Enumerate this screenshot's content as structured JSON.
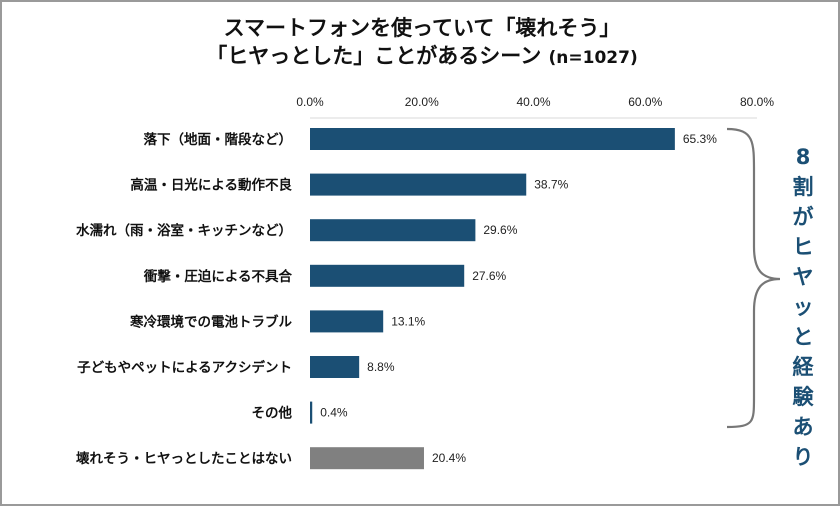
{
  "chart_data": {
    "type": "bar",
    "orientation": "horizontal",
    "title": "スマートフォンを使っていて「壊れそう」",
    "title_line2": "「ヒヤっとした」ことがあるシーン",
    "sample": "(n=1027)",
    "xlim": [
      0,
      80
    ],
    "xticks": [
      "0.0%",
      "20.0%",
      "40.0%",
      "60.0%",
      "80.0%"
    ],
    "xtick_values": [
      0,
      20,
      40,
      60,
      80
    ],
    "axis_position": "top",
    "grid": false,
    "categories": [
      "落下（地面・階段など）",
      "高温・日光による動作不良",
      "水濡れ（雨・浴室・キッチンなど）",
      "衝撃・圧迫による不具合",
      "寒冷環境での電池トラブル",
      "子どもやペットによるアクシデント",
      "その他",
      "壊れそう・ヒヤっとしたことはない"
    ],
    "values": [
      65.3,
      38.7,
      29.6,
      27.6,
      13.1,
      8.8,
      0.4,
      20.4
    ],
    "data_labels": [
      "65.3%",
      "38.7%",
      "29.6%",
      "27.6%",
      "13.1%",
      "8.8%",
      "0.4%",
      "20.4%"
    ],
    "bar_colors": [
      "#1b4f74",
      "#1b4f74",
      "#1b4f74",
      "#1b4f74",
      "#1b4f74",
      "#1b4f74",
      "#1b4f74",
      "#808080"
    ],
    "annotation": "8割がヒヤッと経験あり",
    "annotation_color": "#1b4f74"
  }
}
